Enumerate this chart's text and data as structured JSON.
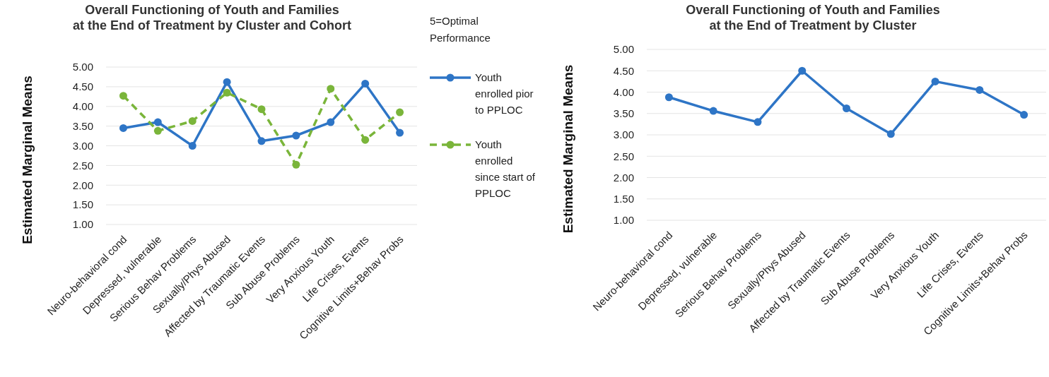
{
  "chart_data": [
    {
      "type": "line",
      "title": "Overall Functioning of Youth and Families\nat the End of Treatment by Cluster and Cohort",
      "ylabel": "Estimated Marginal Means",
      "legend_title": "5=Optimal\nPerformance",
      "legend": "right",
      "grid": "y",
      "marker": "circle",
      "categories": [
        "Neuro-behavioral cond",
        "Depressed, vulnerable",
        "Serious Behav Problems",
        "Sexually/Phys Abused",
        "Affected by Traumatic Events",
        "Sub Abuse Problems",
        "Very Anxious Youth",
        "Life Crises, Events",
        "Cognitive Limits+Behav Probs"
      ],
      "ylim": [
        1,
        5
      ],
      "yticks": [
        {
          "value": 1,
          "label": "1.00"
        },
        {
          "value": 1.5,
          "label": "1.50"
        },
        {
          "value": 2,
          "label": "2.00"
        },
        {
          "value": 2.5,
          "label": "2.50"
        },
        {
          "value": 3,
          "label": "3.00"
        },
        {
          "value": 3.5,
          "label": "3.50"
        },
        {
          "value": 4,
          "label": "4.00"
        },
        {
          "value": 4.5,
          "label": "4.50"
        },
        {
          "value": 5,
          "label": "5.00"
        }
      ],
      "series": [
        {
          "name": "Youth\nenrolled pior\nto PPLOC",
          "color": "#2e75c6",
          "line_style": "solid",
          "values": [
            3.45,
            3.6,
            3.0,
            4.62,
            3.12,
            3.26,
            3.6,
            4.58,
            3.33
          ]
        },
        {
          "name": "Youth\nenrolled\nsince start of\nPPLOC",
          "color": "#7ab53a",
          "line_style": "dashed",
          "values": [
            4.27,
            3.38,
            3.63,
            4.35,
            3.93,
            2.52,
            4.45,
            3.15,
            3.85
          ]
        }
      ]
    },
    {
      "type": "line",
      "title": "Overall Functioning of Youth and Families\nat the End of Treatment by Cluster",
      "ylabel": "Estimated Marginal Means",
      "grid": "y",
      "marker": "circle",
      "categories": [
        "Neuro-behavioral cond",
        "Depressed, vulnerable",
        "Serious Behav Problems",
        "Sexually/Phys Abused",
        "Affected by Traumatic Events",
        "Sub Abuse Problems",
        "Very Anxious Youth",
        "Life Crises, Events",
        "Cognitive Limits+Behav Probs"
      ],
      "ylim": [
        1,
        5
      ],
      "yticks": [
        {
          "value": 1,
          "label": "1.00"
        },
        {
          "value": 1.5,
          "label": "1.50"
        },
        {
          "value": 2,
          "label": "2.00"
        },
        {
          "value": 2.5,
          "label": "2.50"
        },
        {
          "value": 3,
          "label": "3.00"
        },
        {
          "value": 3.5,
          "label": "3.50"
        },
        {
          "value": 4,
          "label": "4.00"
        },
        {
          "value": 4.5,
          "label": "4.50"
        },
        {
          "value": 5,
          "label": "5.00"
        }
      ],
      "series": [
        {
          "color": "#2e75c6",
          "line_style": "solid",
          "values": [
            3.88,
            3.56,
            3.3,
            4.5,
            3.62,
            3.02,
            4.25,
            4.05,
            3.47
          ]
        }
      ]
    }
  ]
}
